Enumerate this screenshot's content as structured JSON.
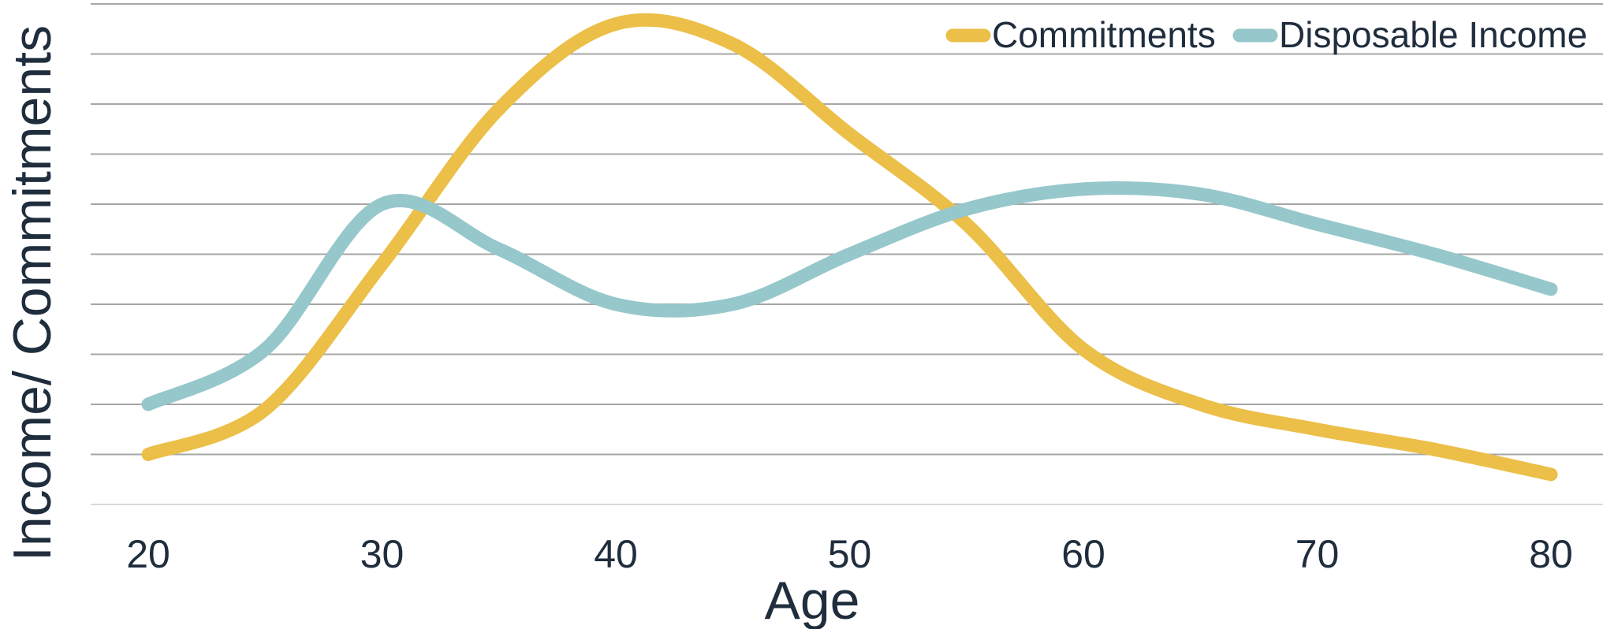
{
  "chart_data": {
    "type": "line",
    "smooth": true,
    "xlabel": "Age",
    "ylabel": "Income/ Commitments",
    "x": [
      20,
      25,
      30,
      35,
      40,
      45,
      50,
      55,
      60,
      65,
      70,
      75,
      80
    ],
    "xlim": [
      20,
      80
    ],
    "x_ticks": [
      "20",
      "30",
      "40",
      "50",
      "60",
      "70",
      "80"
    ],
    "ylim": [
      0,
      10
    ],
    "y_tick_labels_shown": false,
    "grid": true,
    "legend": "top-right",
    "series": [
      {
        "name": "Commitments",
        "color": "#ebbf48",
        "values": [
          1.0,
          1.9,
          4.8,
          7.9,
          9.6,
          9.2,
          7.4,
          5.6,
          3.1,
          2.0,
          1.5,
          1.1,
          0.6
        ]
      },
      {
        "name": "Disposable Income",
        "color": "#96c7cb",
        "values": [
          2.0,
          3.1,
          6.0,
          5.1,
          4.0,
          4.0,
          5.0,
          5.9,
          6.3,
          6.2,
          5.6,
          5.0,
          4.3
        ]
      }
    ]
  }
}
